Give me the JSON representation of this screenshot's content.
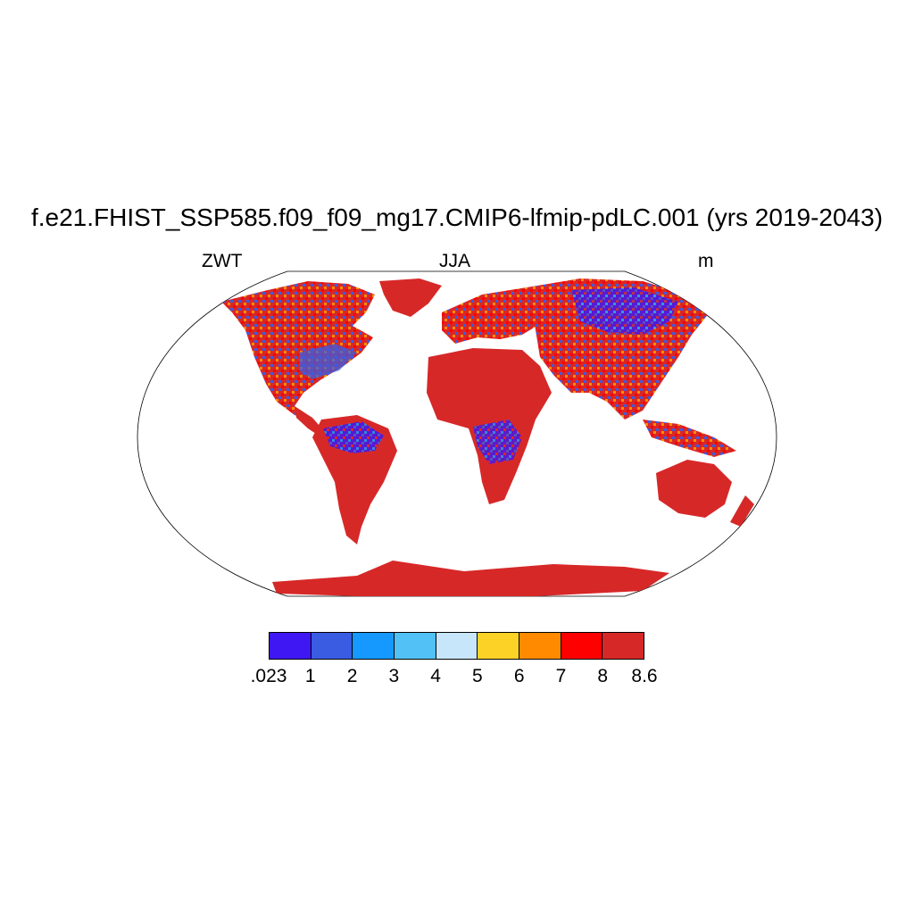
{
  "plot": {
    "title": "f.e21.FHIST_SSP585.f09_f09_mg17.CMIP6-lfmip-pdLC.001 (yrs 2019-2043)",
    "left_label": "ZWT",
    "center_label": "JJA",
    "right_label": "m"
  },
  "map": {
    "projection": "Robinson",
    "continents": [
      "North America",
      "South America",
      "Europe",
      "Africa",
      "Asia",
      "Australia",
      "Antarctica",
      "Greenland"
    ]
  },
  "colorbar": {
    "colors": [
      "#3f17f2",
      "#3a5ce3",
      "#1599ff",
      "#52c1f5",
      "#c8e6fa",
      "#fcd226",
      "#ff8a00",
      "#ff0000",
      "#d72828"
    ],
    "labels": [
      ".023",
      "1",
      "2",
      "3",
      "4",
      "5",
      "6",
      "7",
      "8",
      "8.6"
    ]
  }
}
